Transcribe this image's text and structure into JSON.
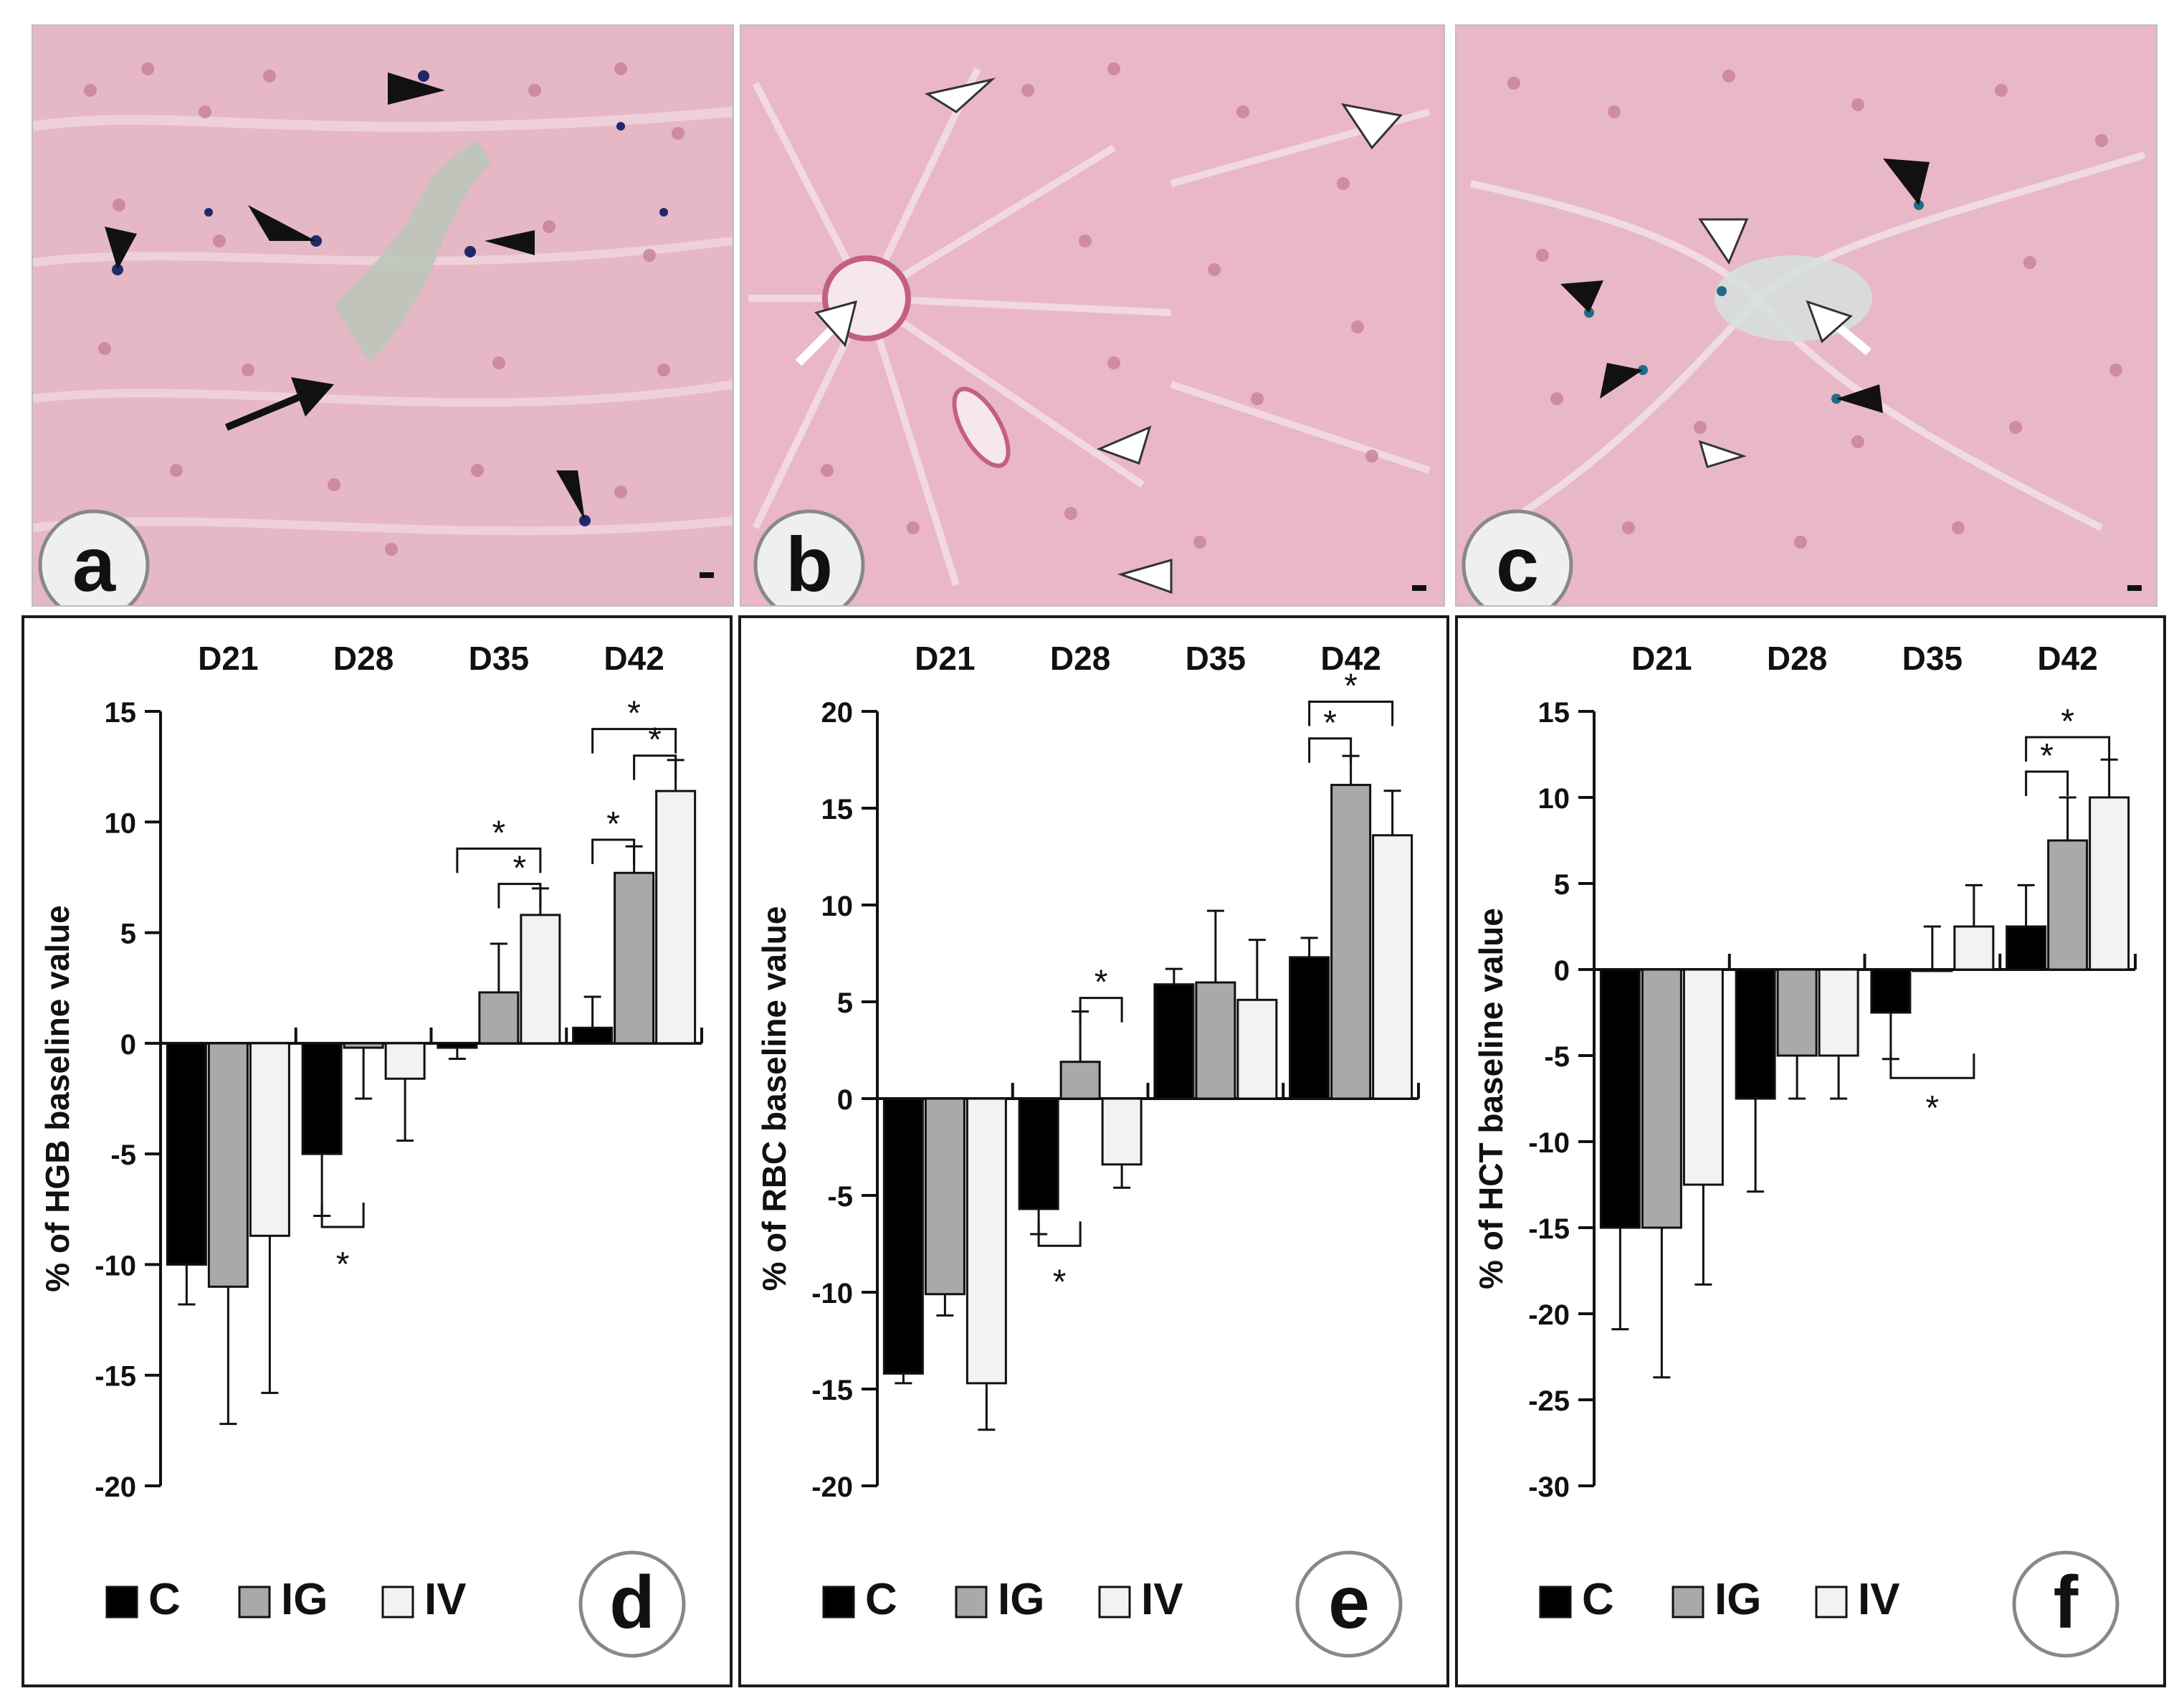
{
  "figure": {
    "micrographs": [
      {
        "letter": "a",
        "description_icon": "liver-micrograph-icon"
      },
      {
        "letter": "b",
        "description_icon": "liver-micrograph-icon"
      },
      {
        "letter": "c",
        "description_icon": "liver-micrograph-icon"
      }
    ]
  },
  "colors": {
    "control": "#000000",
    "ig": "#a9a9a9",
    "iv": "#f2f2f2",
    "tissue": "#e9b4c2",
    "stain": "#1f2a6b"
  },
  "chart_data": [
    {
      "type": "bar",
      "panel_letter": "d",
      "ylabel": "% of HGB baseline value",
      "categories": [
        "D21",
        "D28",
        "D35",
        "D42"
      ],
      "ylim": [
        -20,
        15
      ],
      "yticks": [
        15,
        10,
        5,
        0,
        -5,
        -10,
        -15,
        -20
      ],
      "series": [
        {
          "name": "C",
          "values": [
            -10,
            -5,
            -0.2,
            0.7
          ],
          "errors": [
            1.8,
            2.8,
            0.5,
            1.4
          ]
        },
        {
          "name": "IG",
          "values": [
            -11,
            -0.2,
            2.3,
            7.7
          ],
          "errors": [
            6.2,
            2.3,
            2.2,
            1.2
          ]
        },
        {
          "name": "IV",
          "values": [
            -8.7,
            -1.6,
            5.8,
            11.4
          ],
          "errors": [
            7.1,
            2.8,
            1.2,
            1.4
          ]
        }
      ],
      "significance_marks": [
        "*",
        "*",
        "*",
        "*",
        "*",
        "*"
      ],
      "legend": [
        "C",
        "IG",
        "IV"
      ]
    },
    {
      "type": "bar",
      "panel_letter": "e",
      "ylabel": "% of RBC baseline value",
      "categories": [
        "D21",
        "D28",
        "D35",
        "D42"
      ],
      "ylim": [
        -20,
        20
      ],
      "yticks": [
        20,
        15,
        10,
        5,
        0,
        -5,
        -10,
        -15,
        -20
      ],
      "series": [
        {
          "name": "C",
          "values": [
            -14.2,
            -5.7,
            5.9,
            7.3
          ],
          "errors": [
            0.5,
            1.3,
            0.8,
            1.0
          ]
        },
        {
          "name": "IG",
          "values": [
            -10.1,
            1.9,
            6.0,
            16.2
          ],
          "errors": [
            1.1,
            2.6,
            3.7,
            1.5
          ]
        },
        {
          "name": "IV",
          "values": [
            -14.7,
            -3.4,
            5.1,
            13.6
          ],
          "errors": [
            2.4,
            1.2,
            3.1,
            2.3
          ]
        }
      ],
      "significance_marks": [
        "*",
        "*",
        "*",
        "*"
      ],
      "legend": [
        "C",
        "IG",
        "IV"
      ]
    },
    {
      "type": "bar",
      "panel_letter": "f",
      "ylabel": "% of HCT baseline value",
      "categories": [
        "D21",
        "D28",
        "D35",
        "D42"
      ],
      "ylim": [
        -30,
        15
      ],
      "yticks": [
        15,
        10,
        5,
        0,
        -5,
        -10,
        -15,
        -20,
        -25,
        -30
      ],
      "series": [
        {
          "name": "C",
          "values": [
            -15,
            -7.5,
            -2.5,
            2.5
          ],
          "errors": [
            5.9,
            5.4,
            2.7,
            2.4
          ]
        },
        {
          "name": "IG",
          "values": [
            -15,
            -5,
            0,
            7.5
          ],
          "errors": [
            8.7,
            2.5,
            2.5,
            2.5
          ]
        },
        {
          "name": "IV",
          "values": [
            -12.5,
            -5,
            2.5,
            10
          ],
          "errors": [
            5.8,
            2.5,
            2.4,
            2.2
          ]
        }
      ],
      "significance_marks": [
        "*",
        "*",
        "*"
      ],
      "legend": [
        "C",
        "IG",
        "IV"
      ]
    }
  ]
}
